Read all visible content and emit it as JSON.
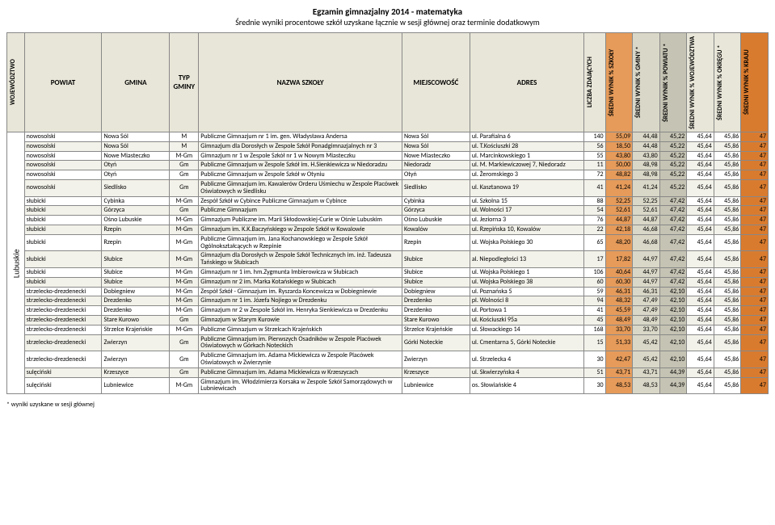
{
  "title": "Egzamin gimnazjalny 2014 - matematyka",
  "subtitle": "Średnie wyniki procentowe szkół uzyskane łącznie w sesji głównej oraz terminie dodatkowym",
  "footnote": "* wyniki uzyskane w sesji głównej",
  "wojewodztwo": "Lubuskie",
  "headers": {
    "woj": "WOJEWÓDZTWO",
    "pow": "POWIAT",
    "gmi": "GMINA",
    "typ": "TYP GMINY",
    "naz": "NAZWA SZKOŁY",
    "mie": "MIEJSCOWOŚĆ",
    "adr": "ADRES",
    "liczba": "LICZBA ZDAJĄCYCH",
    "szk": "ŚREDNI WYNIK % SZKOŁY",
    "gmin": "ŚREDNI WYNIK % GMINY *",
    "powp": "ŚREDNI WYNIK % POWIATU *",
    "wojp": "ŚREDNI WYNIK % WOJEWÓDZTWA",
    "okr": "ŚREDNI WYNIK % OKRĘGU *",
    "kraj": "ŚREDNI WYNIK % KRAJU"
  },
  "colors": {
    "header_bg": "#e8e6d8",
    "shade_gminy": "#d9d7c7",
    "shade_powiat": "#c5c3b3",
    "shade_szkoly": "#e69b5a",
    "shade_kraju": "#d97b2e",
    "row_alt": "#f3f2ea"
  },
  "rows": [
    {
      "pow": "nowosolski",
      "gmi": "Nowa Sól",
      "typ": "M",
      "naz": "Publiczne Gimnazjum nr 1 im. gen. Władysława Andersa",
      "mie": "Nowa Sól",
      "adr": "ul. Parafialna 6",
      "n": 140,
      "s": "55,09",
      "g": "44,48",
      "p": "45,22",
      "w": "45,64",
      "o": "45,86",
      "k": 47
    },
    {
      "pow": "nowosolski",
      "gmi": "Nowa Sól",
      "typ": "M",
      "naz": "Gimnazjum dla Dorosłych w Zespole Szkół Ponadgimnazjalnych nr 3",
      "mie": "Nowa Sól",
      "adr": "ul. T.Kościuszki 28",
      "n": 56,
      "s": "18,50",
      "g": "44,48",
      "p": "45,22",
      "w": "45,64",
      "o": "45,86",
      "k": 47
    },
    {
      "pow": "nowosolski",
      "gmi": "Nowe Miasteczko",
      "typ": "M-Gm",
      "naz": "Gimnazjum nr 1 w Zespole Szkół nr 1 w Nowym Miasteczku",
      "mie": "Nowe Miasteczko",
      "adr": "ul. Marcinkowskiego 1",
      "n": 55,
      "s": "43,80",
      "g": "43,80",
      "p": "45,22",
      "w": "45,64",
      "o": "45,86",
      "k": 47
    },
    {
      "pow": "nowosolski",
      "gmi": "Otyń",
      "typ": "Gm",
      "naz": "Publiczne Gimnazjum w Zespole Szkół im. H.Sienkiewicza w Niedoradzu",
      "mie": "Niedoradz",
      "adr": "ul. M. Markiewiczowej 7, Niedoradz",
      "n": 11,
      "s": "50,00",
      "g": "48,98",
      "p": "45,22",
      "w": "45,64",
      "o": "45,86",
      "k": 47
    },
    {
      "pow": "nowosolski",
      "gmi": "Otyń",
      "typ": "Gm",
      "naz": "Publiczne Gimnazjum w Zespole Szkół w Otyniu",
      "mie": "Otyń",
      "adr": "ul. Żeromskiego 3",
      "n": 72,
      "s": "48,82",
      "g": "48,98",
      "p": "45,22",
      "w": "45,64",
      "o": "45,86",
      "k": 47
    },
    {
      "pow": "nowosolski",
      "gmi": "Siedlisko",
      "typ": "Gm",
      "naz": "Publiczne Gimnazjum im. Kawalerów Orderu Uśmiechu w Zespole Placówek Oświatowych w Siedlisku",
      "mie": "Siedlisko",
      "adr": "ul. Kasztanowa 19",
      "n": 41,
      "s": "41,24",
      "g": "41,24",
      "p": "45,22",
      "w": "45,64",
      "o": "45,86",
      "k": 47
    },
    {
      "pow": "słubicki",
      "gmi": "Cybinka",
      "typ": "M-Gm",
      "naz": "Zespół Szkół w Cybince Publiczne Gimnazjum w Cybince",
      "mie": "Cybinka",
      "adr": "ul. Szkolna 15",
      "n": 88,
      "s": "52,25",
      "g": "52,25",
      "p": "47,42",
      "w": "45,64",
      "o": "45,86",
      "k": 47
    },
    {
      "pow": "słubicki",
      "gmi": "Górzyca",
      "typ": "Gm",
      "naz": "Publiczne Gimnazjum",
      "mie": "Górzyca",
      "adr": "ul. Wolności 17",
      "n": 54,
      "s": "52,61",
      "g": "52,61",
      "p": "47,42",
      "w": "45,64",
      "o": "45,86",
      "k": 47
    },
    {
      "pow": "słubicki",
      "gmi": "Ośno Lubuskie",
      "typ": "M-Gm",
      "naz": "Gimnazjum Publiczne im. Marii Skłodowskiej-Curie w Ośnie Lubuskim",
      "mie": "Ośno Lubuskie",
      "adr": "ul. Jeziorna 3",
      "n": 76,
      "s": "44,87",
      "g": "44,87",
      "p": "47,42",
      "w": "45,64",
      "o": "45,86",
      "k": 47
    },
    {
      "pow": "słubicki",
      "gmi": "Rzepin",
      "typ": "M-Gm",
      "naz": "Gimnazjum im. K.K.Baczyńskiego w Zespole Szkół w Kowalowie",
      "mie": "Kowalów",
      "adr": "ul. Rzepińska 10, Kowalów",
      "n": 22,
      "s": "42,18",
      "g": "46,68",
      "p": "47,42",
      "w": "45,64",
      "o": "45,86",
      "k": 47
    },
    {
      "pow": "słubicki",
      "gmi": "Rzepin",
      "typ": "M-Gm",
      "naz": "Publiczne Gimnazjum im. Jana Kochanowskiego w Zespole Szkół Ogólnokształcących w Rzepinie",
      "mie": "Rzepin",
      "adr": "ul. Wojska Polskiego 30",
      "n": 65,
      "s": "48,20",
      "g": "46,68",
      "p": "47,42",
      "w": "45,64",
      "o": "45,86",
      "k": 47
    },
    {
      "pow": "słubicki",
      "gmi": "Słubice",
      "typ": "M-Gm",
      "naz": "Gimnazjum dla Dorosłych w Zespole Szkół Technicznych im. inż. Tadeusza Tańskiego w Słubicach",
      "mie": "Słubice",
      "adr": "al. Niepodległości 13",
      "n": 17,
      "s": "17,82",
      "g": "44,97",
      "p": "47,42",
      "w": "45,64",
      "o": "45,86",
      "k": 47
    },
    {
      "pow": "słubicki",
      "gmi": "Słubice",
      "typ": "M-Gm",
      "naz": "Gimnazjum nr 1 im. hm.Zygmunta Imbierowicza w Słubicach",
      "mie": "Słubice",
      "adr": "ul. Wojska Polskiego 1",
      "n": 106,
      "s": "40,64",
      "g": "44,97",
      "p": "47,42",
      "w": "45,64",
      "o": "45,86",
      "k": 47
    },
    {
      "pow": "słubicki",
      "gmi": "Słubice",
      "typ": "M-Gm",
      "naz": "Gimnazjum nr 2 im. Marka Kotańskiego w Słubicach",
      "mie": "Słubice",
      "adr": "ul. Wojska Polskiego 38",
      "n": 60,
      "s": "60,30",
      "g": "44,97",
      "p": "47,42",
      "w": "45,64",
      "o": "45,86",
      "k": 47
    },
    {
      "pow": "strzelecko-drezdenecki",
      "gmi": "Dobiegniew",
      "typ": "M-Gm",
      "naz": "Zespół Szkół - Gimnazjum im. Ryszarda Koncewicza w Dobiegniewie",
      "mie": "Dobiegniew",
      "adr": "ul. Poznańska 5",
      "n": 59,
      "s": "46,31",
      "g": "46,31",
      "p": "42,10",
      "w": "45,64",
      "o": "45,86",
      "k": 47
    },
    {
      "pow": "strzelecko-drezdenecki",
      "gmi": "Drezdenko",
      "typ": "M-Gm",
      "naz": "Gimnazjum nr 1 im. Józefa Nojiego w Drezdenku",
      "mie": "Drezdenko",
      "adr": "pl. Wolności 8",
      "n": 94,
      "s": "48,32",
      "g": "47,49",
      "p": "42,10",
      "w": "45,64",
      "o": "45,86",
      "k": 47
    },
    {
      "pow": "strzelecko-drezdenecki",
      "gmi": "Drezdenko",
      "typ": "M-Gm",
      "naz": "Gimnazjum nr 2 w Zespole Szkół im. Henryka Sienkiewicza w Drezdenku",
      "mie": "Drezdenko",
      "adr": "ul. Portowa 1",
      "n": 41,
      "s": "45,59",
      "g": "47,49",
      "p": "42,10",
      "w": "45,64",
      "o": "45,86",
      "k": 47
    },
    {
      "pow": "strzelecko-drezdenecki",
      "gmi": "Stare Kurowo",
      "typ": "Gm",
      "naz": "Gimnazjum w Starym Kurowie",
      "mie": "Stare Kurowo",
      "adr": "ul. Kościuszki 95a",
      "n": 45,
      "s": "48,49",
      "g": "48,49",
      "p": "42,10",
      "w": "45,64",
      "o": "45,86",
      "k": 47
    },
    {
      "pow": "strzelecko-drezdenecki",
      "gmi": "Strzelce Krajeńskie",
      "typ": "M-Gm",
      "naz": "Publiczne Gimnazjum w Strzelcach Krajeńskich",
      "mie": "Strzelce Krajeńskie",
      "adr": "ul. Słowackiego 14",
      "n": 168,
      "s": "33,70",
      "g": "33,70",
      "p": "42,10",
      "w": "45,64",
      "o": "45,86",
      "k": 47
    },
    {
      "pow": "strzelecko-drezdenecki",
      "gmi": "Zwierzyn",
      "typ": "Gm",
      "naz": "Publiczne Gimnazjum im. Pierwszych Osadników w Zespole Placówek Oświatowych w Górkach Noteckich",
      "mie": "Górki Noteckie",
      "adr": "ul. Cmentarna 5, Górki Noteckie",
      "n": 15,
      "s": "51,33",
      "g": "45,42",
      "p": "42,10",
      "w": "45,64",
      "o": "45,86",
      "k": 47
    },
    {
      "pow": "strzelecko-drezdenecki",
      "gmi": "Zwierzyn",
      "typ": "Gm",
      "naz": "Publiczne Gimnazjum im. Adama Mickiewicza w Zespole Placówek Oświatowych w Zwierzynie",
      "mie": "Zwierzyn",
      "adr": "ul. Strzelecka 4",
      "n": 30,
      "s": "42,47",
      "g": "45,42",
      "p": "42,10",
      "w": "45,64",
      "o": "45,86",
      "k": 47
    },
    {
      "pow": "sulęciński",
      "gmi": "Krzeszyce",
      "typ": "Gm",
      "naz": "Publiczne Gimnazjum im. Adama Mickiewicza w Krzeszycach",
      "mie": "Krzeszyce",
      "adr": "ul. Skwierzyńska 4",
      "n": 51,
      "s": "43,71",
      "g": "43,71",
      "p": "44,39",
      "w": "45,64",
      "o": "45,86",
      "k": 47
    },
    {
      "pow": "sulęciński",
      "gmi": "Lubniewice",
      "typ": "M-Gm",
      "naz": "Gimnazjum im. Włodzimierza Korsaka w Zespole Szkół Samorządowych w Lubniewicach",
      "mie": "Lubniewice",
      "adr": "os. Słowiańskie 4",
      "n": 30,
      "s": "48,53",
      "g": "48,53",
      "p": "44,39",
      "w": "45,64",
      "o": "45,86",
      "k": 47
    }
  ]
}
